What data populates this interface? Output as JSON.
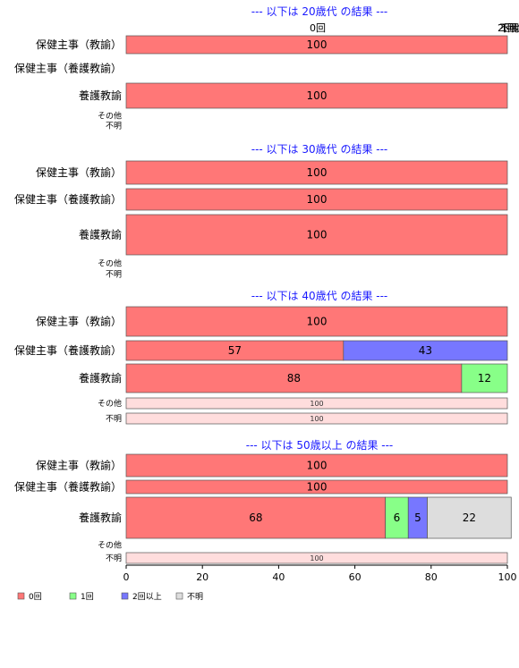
{
  "chart_data": {
    "type": "bar",
    "orientation": "horizontal",
    "stacked": true,
    "xlim": [
      0,
      100
    ],
    "x_ticks": [
      "0",
      "20",
      "40",
      "60",
      "80",
      "100"
    ],
    "top_labels": [
      "0回",
      "2回以上",
      "不明",
      "1回"
    ],
    "categories": [
      "保健主事（教諭）",
      "保健主事（養護教諭）",
      "養護教諭",
      "その他",
      "不明"
    ],
    "series_names": [
      "0回",
      "1回",
      "2回以上",
      "不明"
    ],
    "colors": {
      "0回": "#ff7777",
      "1回": "#88ff88",
      "2回以上": "#7777ff",
      "不明": "#dddddd",
      "other": "#ffdddd"
    },
    "legend_position": "bottom-left",
    "groups": [
      {
        "title": "--- 以下は 20歳代 の結果 ---",
        "rows": [
          {
            "category": "保健主事（教諭）",
            "segments": [
              {
                "series": "0回",
                "value": 100,
                "label": "100"
              }
            ]
          },
          {
            "category": "保健主事（養護教諭）",
            "segments": []
          },
          {
            "category": "養護教諭",
            "segments": [
              {
                "series": "0回",
                "value": 100,
                "label": "100"
              }
            ]
          },
          {
            "category": "その他",
            "segments": []
          },
          {
            "category": "不明",
            "segments": []
          }
        ]
      },
      {
        "title": "--- 以下は 30歳代 の結果 ---",
        "rows": [
          {
            "category": "保健主事（教諭）",
            "segments": [
              {
                "series": "0回",
                "value": 100,
                "label": "100"
              }
            ]
          },
          {
            "category": "保健主事（養護教諭）",
            "segments": [
              {
                "series": "0回",
                "value": 100,
                "label": "100"
              }
            ]
          },
          {
            "category": "養護教諭",
            "segments": [
              {
                "series": "0回",
                "value": 100,
                "label": "100"
              }
            ]
          },
          {
            "category": "その他",
            "segments": []
          },
          {
            "category": "不明",
            "segments": []
          }
        ]
      },
      {
        "title": "--- 以下は 40歳代 の結果 ---",
        "rows": [
          {
            "category": "保健主事（教諭）",
            "segments": [
              {
                "series": "0回",
                "value": 100,
                "label": "100"
              }
            ]
          },
          {
            "category": "保健主事（養護教諭）",
            "segments": [
              {
                "series": "0回",
                "value": 57,
                "label": "57"
              },
              {
                "series": "2回以上",
                "value": 43,
                "label": "43"
              }
            ]
          },
          {
            "category": "養護教諭",
            "segments": [
              {
                "series": "0回",
                "value": 88,
                "label": "88"
              },
              {
                "series": "1回",
                "value": 12,
                "label": "12"
              }
            ]
          },
          {
            "category": "その他",
            "segments": [
              {
                "series": "other",
                "value": 100,
                "label": "100"
              }
            ]
          },
          {
            "category": "不明",
            "segments": [
              {
                "series": "other",
                "value": 100,
                "label": "100"
              }
            ]
          }
        ]
      },
      {
        "title": "--- 以下は 50歳以上 の結果 ---",
        "rows": [
          {
            "category": "保健主事（教諭）",
            "segments": [
              {
                "series": "0回",
                "value": 100,
                "label": "100"
              }
            ]
          },
          {
            "category": "保健主事（養護教諭）",
            "segments": [
              {
                "series": "0回",
                "value": 100,
                "label": "100"
              }
            ]
          },
          {
            "category": "養護教諭",
            "segments": [
              {
                "series": "0回",
                "value": 68,
                "label": "68"
              },
              {
                "series": "1回",
                "value": 6,
                "label": "6"
              },
              {
                "series": "2回以上",
                "value": 5,
                "label": "5"
              },
              {
                "series": "不明",
                "value": 22,
                "label": "22"
              }
            ]
          },
          {
            "category": "その他",
            "segments": []
          },
          {
            "category": "不明",
            "segments": [
              {
                "series": "other",
                "value": 100,
                "label": "100"
              }
            ]
          }
        ]
      }
    ]
  }
}
